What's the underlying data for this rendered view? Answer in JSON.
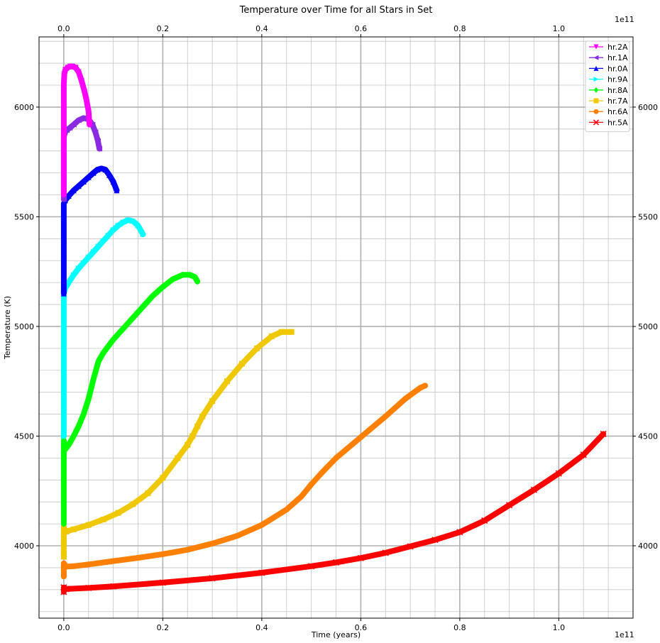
{
  "chart_data": {
    "type": "line",
    "title": "Temperature over Time for all Stars in Set",
    "xlabel": "Time (years)",
    "ylabel": "Temperature (K)",
    "x_offset_text": "1e11",
    "x_scale_factor": 100000000000.0,
    "xlim": [
      -0.05,
      1.15
    ],
    "ylim": [
      3670,
      6320
    ],
    "x_major_ticks": [
      0.0,
      0.2,
      0.4,
      0.6,
      0.8,
      1.0
    ],
    "x_tick_labels": [
      "0.0",
      "0.2",
      "0.4",
      "0.6",
      "0.8",
      "1.0"
    ],
    "y_major_ticks": [
      4000,
      4500,
      5000,
      5500,
      6000
    ],
    "y_tick_labels": [
      "4000",
      "4500",
      "5000",
      "5500",
      "6000"
    ],
    "grid": true,
    "legend_position": "top-right",
    "series": [
      {
        "name": "hr.2A",
        "color": "#ff00ff",
        "marker": "triangle-down",
        "x": [
          0.0,
          0.0,
          0.0,
          0.001,
          0.003,
          0.008,
          0.013,
          0.018,
          0.024,
          0.03,
          0.036,
          0.042,
          0.046,
          0.05,
          0.052
        ],
        "y": [
          5600,
          5900,
          6100,
          6150,
          6170,
          6180,
          6185,
          6185,
          6180,
          6160,
          6120,
          6070,
          6030,
          5980,
          5920
        ]
      },
      {
        "name": "hr.1A",
        "color": "#8a2be2",
        "marker": "triangle-left",
        "x": [
          0.0,
          0.0,
          0.002,
          0.006,
          0.012,
          0.02,
          0.03,
          0.04,
          0.05,
          0.058,
          0.064,
          0.069,
          0.072
        ],
        "y": [
          5580,
          5860,
          5885,
          5895,
          5905,
          5920,
          5940,
          5950,
          5945,
          5920,
          5885,
          5845,
          5810
        ]
      },
      {
        "name": "hr.0A",
        "color": "#0000ff",
        "marker": "triangle-up",
        "x": [
          0.0,
          0.0,
          0.0,
          0.003,
          0.01,
          0.02,
          0.03,
          0.04,
          0.05,
          0.06,
          0.068,
          0.076,
          0.084,
          0.092,
          0.1,
          0.107
        ],
        "y": [
          5150,
          5400,
          5560,
          5575,
          5595,
          5620,
          5640,
          5660,
          5680,
          5700,
          5715,
          5720,
          5715,
          5690,
          5660,
          5620
        ]
      },
      {
        "name": "hr.9A",
        "color": "#00ffff",
        "marker": "triangle-right",
        "x": [
          0.0,
          0.0,
          0.003,
          0.01,
          0.02,
          0.03,
          0.04,
          0.05,
          0.06,
          0.07,
          0.08,
          0.09,
          0.1,
          0.11,
          0.12,
          0.13,
          0.14,
          0.15,
          0.16
        ],
        "y": [
          4500,
          5150,
          5175,
          5200,
          5235,
          5265,
          5290,
          5315,
          5340,
          5365,
          5390,
          5415,
          5440,
          5460,
          5475,
          5485,
          5480,
          5460,
          5420
        ]
      },
      {
        "name": "hr.8A",
        "color": "#00ff00",
        "marker": "diamond",
        "x": [
          0.0,
          0.0,
          0.0,
          0.003,
          0.01,
          0.02,
          0.03,
          0.04,
          0.05,
          0.06,
          0.07,
          0.08,
          0.1,
          0.12,
          0.14,
          0.16,
          0.18,
          0.2,
          0.22,
          0.24,
          0.255,
          0.265,
          0.27
        ],
        "y": [
          4100,
          4300,
          4480,
          4440,
          4460,
          4500,
          4545,
          4600,
          4670,
          4760,
          4840,
          4880,
          4940,
          4990,
          5040,
          5090,
          5140,
          5180,
          5215,
          5235,
          5235,
          5225,
          5205
        ]
      },
      {
        "name": "hr.7A",
        "color": "#f0c800",
        "marker": "square",
        "x": [
          0.0,
          0.0,
          0.0,
          0.005,
          0.02,
          0.05,
          0.08,
          0.11,
          0.14,
          0.17,
          0.2,
          0.23,
          0.25,
          0.26,
          0.27,
          0.28,
          0.3,
          0.33,
          0.36,
          0.39,
          0.42,
          0.44,
          0.46
        ],
        "y": [
          3950,
          4030,
          4080,
          4065,
          4075,
          4095,
          4120,
          4150,
          4190,
          4240,
          4310,
          4400,
          4460,
          4500,
          4545,
          4590,
          4660,
          4750,
          4830,
          4900,
          4955,
          4975,
          4975
        ]
      },
      {
        "name": "hr.6A",
        "color": "#ff8000",
        "marker": "circle",
        "x": [
          0.0,
          0.0,
          0.005,
          0.02,
          0.05,
          0.1,
          0.15,
          0.2,
          0.25,
          0.3,
          0.35,
          0.4,
          0.45,
          0.48,
          0.5,
          0.52,
          0.55,
          0.6,
          0.65,
          0.69,
          0.72,
          0.73
        ],
        "y": [
          3860,
          3920,
          3905,
          3907,
          3915,
          3930,
          3945,
          3962,
          3982,
          4010,
          4045,
          4095,
          4165,
          4225,
          4280,
          4330,
          4400,
          4495,
          4590,
          4670,
          4720,
          4730
        ]
      },
      {
        "name": "hr.5A",
        "color": "#ff0000",
        "marker": "x",
        "x": [
          0.0,
          0.0,
          0.005,
          0.05,
          0.1,
          0.2,
          0.3,
          0.4,
          0.5,
          0.55,
          0.6,
          0.65,
          0.7,
          0.75,
          0.8,
          0.85,
          0.9,
          0.95,
          1.0,
          1.05,
          1.09
        ],
        "y": [
          3790,
          3810,
          3803,
          3808,
          3815,
          3832,
          3852,
          3877,
          3907,
          3924,
          3944,
          3968,
          3997,
          4027,
          4062,
          4115,
          4185,
          4255,
          4330,
          4415,
          4510
        ]
      }
    ]
  }
}
